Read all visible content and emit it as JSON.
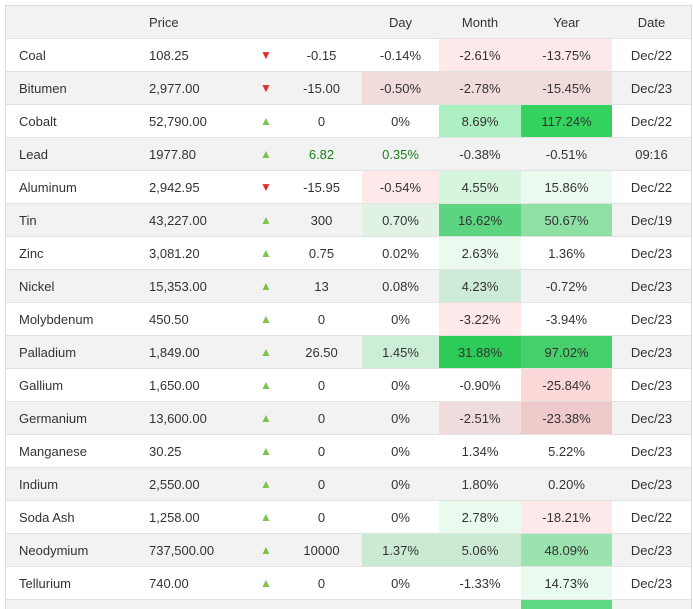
{
  "headers": {
    "name": "",
    "price": "Price",
    "arrow": "",
    "change": "",
    "day": "Day",
    "month": "Month",
    "year": "Year",
    "date": "Date"
  },
  "rows": [
    {
      "name": "Coal",
      "price": "108.25",
      "dir": "down",
      "change": "-0.15",
      "day": "-0.14%",
      "month": "-2.61%",
      "year": "-13.75%",
      "date": "Dec/22",
      "bg": {
        "month": "#fde9e9",
        "year": "#fde9e9"
      }
    },
    {
      "name": "Bitumen",
      "price": "2,977.00",
      "dir": "down",
      "change": "-15.00",
      "day": "-0.50%",
      "month": "-2.78%",
      "year": "-15.45%",
      "date": "Dec/23",
      "bg": {
        "day": "#f1dcdc",
        "month": "#f1dcdc",
        "year": "#f1dcdc"
      }
    },
    {
      "name": "Cobalt",
      "price": "52,790.00",
      "dir": "up",
      "change": "0",
      "day": "0%",
      "month": "8.69%",
      "year": "117.24%",
      "date": "Dec/22",
      "bg": {
        "month": "#adf0c2",
        "year": "#34d35f"
      }
    },
    {
      "name": "Lead",
      "price": "1977.80",
      "dir": "up",
      "change": "6.82",
      "day": "0.35%",
      "month": "-0.38%",
      "year": "-0.51%",
      "date": "09:16",
      "green": true,
      "bg": {}
    },
    {
      "name": "Aluminum",
      "price": "2,942.95",
      "dir": "down",
      "change": "-15.95",
      "day": "-0.54%",
      "month": "4.55%",
      "year": "15.86%",
      "date": "Dec/22",
      "bg": {
        "day": "#fde9e9",
        "month": "#d6f5df",
        "year": "#ebfaef"
      }
    },
    {
      "name": "Tin",
      "price": "43,227.00",
      "dir": "up",
      "change": "300",
      "day": "0.70%",
      "month": "16.62%",
      "year": "50.67%",
      "date": "Dec/19",
      "bg": {
        "day": "#dff2e4",
        "month": "#5dd47f",
        "year": "#8ee0a5"
      }
    },
    {
      "name": "Zinc",
      "price": "3,081.20",
      "dir": "up",
      "change": "0.75",
      "day": "0.02%",
      "month": "2.63%",
      "year": "1.36%",
      "date": "Dec/23",
      "bg": {
        "month": "#ebfaef"
      }
    },
    {
      "name": "Nickel",
      "price": "15,353.00",
      "dir": "up",
      "change": "13",
      "day": "0.08%",
      "month": "4.23%",
      "year": "-0.72%",
      "date": "Dec/23",
      "bg": {
        "month": "#cdebd7"
      }
    },
    {
      "name": "Molybdenum",
      "price": "450.50",
      "dir": "up",
      "change": "0",
      "day": "0%",
      "month": "-3.22%",
      "year": "-3.94%",
      "date": "Dec/23",
      "bg": {
        "month": "#fde9e9"
      }
    },
    {
      "name": "Palladium",
      "price": "1,849.00",
      "dir": "up",
      "change": "26.50",
      "day": "1.45%",
      "month": "31.88%",
      "year": "97.02%",
      "date": "Dec/23",
      "bg": {
        "day": "#cdeed6",
        "month": "#2fcb58",
        "year": "#45d06b"
      }
    },
    {
      "name": "Gallium",
      "price": "1,650.00",
      "dir": "up",
      "change": "0",
      "day": "0%",
      "month": "-0.90%",
      "year": "-25.84%",
      "date": "Dec/23",
      "bg": {
        "year": "#fbd8d8"
      }
    },
    {
      "name": "Germanium",
      "price": "13,600.00",
      "dir": "up",
      "change": "0",
      "day": "0%",
      "month": "-2.51%",
      "year": "-23.38%",
      "date": "Dec/23",
      "bg": {
        "month": "#f0dcdc",
        "year": "#f0caca"
      }
    },
    {
      "name": "Manganese",
      "price": "30.25",
      "dir": "up",
      "change": "0",
      "day": "0%",
      "month": "1.34%",
      "year": "5.22%",
      "date": "Dec/23",
      "bg": {}
    },
    {
      "name": "Indium",
      "price": "2,550.00",
      "dir": "up",
      "change": "0",
      "day": "0%",
      "month": "1.80%",
      "year": "0.20%",
      "date": "Dec/23",
      "bg": {}
    },
    {
      "name": "Soda Ash",
      "price": "1,258.00",
      "dir": "up",
      "change": "0",
      "day": "0%",
      "month": "2.78%",
      "year": "-18.21%",
      "date": "Dec/22",
      "bg": {
        "month": "#ebfaef",
        "year": "#fde9e9"
      }
    },
    {
      "name": "Neodymium",
      "price": "737,500.00",
      "dir": "up",
      "change": "10000",
      "day": "1.37%",
      "month": "5.06%",
      "year": "48.09%",
      "date": "Dec/23",
      "bg": {
        "day": "#cbead4",
        "month": "#cbead4",
        "year": "#9ae2ae"
      }
    },
    {
      "name": "Tellurium",
      "price": "740.00",
      "dir": "up",
      "change": "0",
      "day": "0%",
      "month": "-1.33%",
      "year": "14.73%",
      "date": "Dec/23",
      "bg": {
        "year": "#ebfaef"
      }
    },
    {
      "name": "",
      "price": "",
      "dir": "",
      "change": "",
      "day": "",
      "month": "",
      "year": "",
      "date": "",
      "bg": {
        "year": "#5fd882"
      }
    }
  ],
  "icons": {
    "up": "▲",
    "down": "▼"
  },
  "colors": {
    "positive_text": "#1a7f1a"
  }
}
